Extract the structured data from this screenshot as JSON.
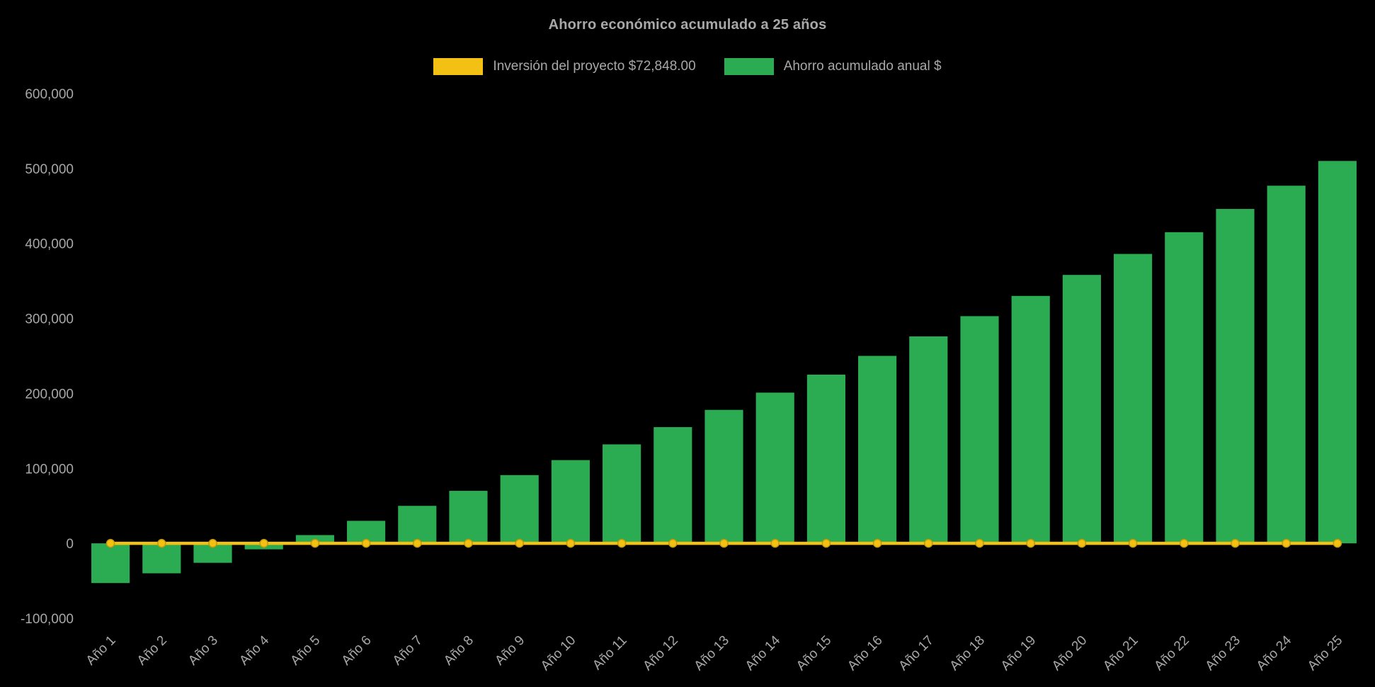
{
  "chart_data": {
    "type": "bar",
    "title": "Ahorro económico acumulado a 25 años",
    "categories": [
      "Año 1",
      "Año 2",
      "Año 3",
      "Año 4",
      "Año 5",
      "Año 6",
      "Año 7",
      "Año 8",
      "Año 9",
      "Año 10",
      "Año 11",
      "Año 12",
      "Año 13",
      "Año 14",
      "Año 15",
      "Año 16",
      "Año 17",
      "Año 18",
      "Año 19",
      "Año 20",
      "Año 21",
      "Año 22",
      "Año 23",
      "Año 24",
      "Año 25"
    ],
    "series": [
      {
        "name": "Inversión del proyecto $72,848.00",
        "type": "line",
        "color": "#F2C114",
        "point_border": "#C79A06",
        "values": [
          0,
          0,
          0,
          0,
          0,
          0,
          0,
          0,
          0,
          0,
          0,
          0,
          0,
          0,
          0,
          0,
          0,
          0,
          0,
          0,
          0,
          0,
          0,
          0,
          0
        ]
      },
      {
        "name": "Ahorro acumulado anual $",
        "type": "bar",
        "color": "#2BAB52",
        "values": [
          -53000,
          -40000,
          -26000,
          -8000,
          11000,
          30000,
          50000,
          70000,
          91000,
          111000,
          132000,
          155000,
          178000,
          201000,
          225000,
          250000,
          276000,
          303000,
          330000,
          358000,
          386000,
          415000,
          446000,
          477000,
          510000
        ]
      }
    ],
    "ylim": [
      -100000,
      600000
    ],
    "yticks": [
      -100000,
      0,
      100000,
      200000,
      300000,
      400000,
      500000,
      600000
    ],
    "grid": false,
    "legend_position": "top",
    "text_color": "#A8A8A8",
    "background": "#000000"
  }
}
